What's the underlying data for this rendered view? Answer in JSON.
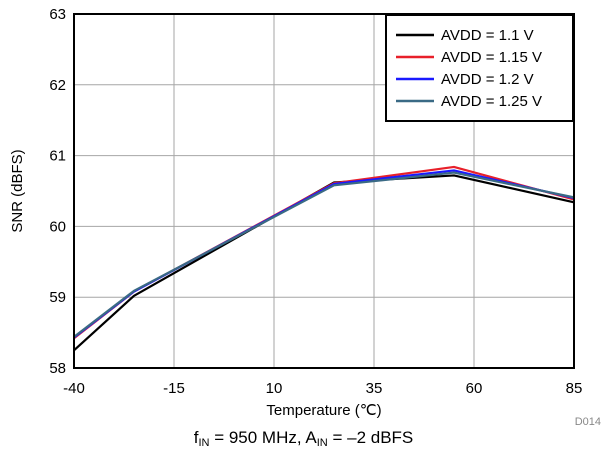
{
  "chart_data": {
    "type": "line",
    "xlabel": "Temperature (℃)",
    "ylabel": "SNR (dBFS)",
    "xlim": [
      -40,
      85
    ],
    "ylim": [
      58,
      63
    ],
    "xticks": [
      "-40",
      "-15",
      "10",
      "35",
      "60",
      "85"
    ],
    "yticks": [
      "58",
      "59",
      "60",
      "61",
      "62",
      "63"
    ],
    "grid": true,
    "legend_position": "top-right",
    "x": [
      -40,
      -25,
      25,
      55,
      85
    ],
    "series": [
      {
        "name": "AVDD = 1.1 V",
        "color": "#000000",
        "values": [
          58.25,
          59.02,
          60.62,
          60.72,
          60.34
        ]
      },
      {
        "name": "AVDD = 1.15 V",
        "color": "#e8202a",
        "values": [
          58.42,
          59.08,
          60.61,
          60.84,
          60.38
        ]
      },
      {
        "name": "AVDD = 1.2 V",
        "color": "#1a1aff",
        "values": [
          58.43,
          59.08,
          60.6,
          60.79,
          60.4
        ]
      },
      {
        "name": "AVDD = 1.25 V",
        "color": "#3a6a85",
        "values": [
          58.44,
          59.09,
          60.58,
          60.76,
          60.41
        ]
      }
    ]
  },
  "figure_id": "D014",
  "caption": {
    "f_label": "f",
    "f_sub": "IN",
    "f_value": " = 950 MHz, ",
    "a_label": "A",
    "a_sub": "IN",
    "a_value": " = –2 dBFS"
  }
}
